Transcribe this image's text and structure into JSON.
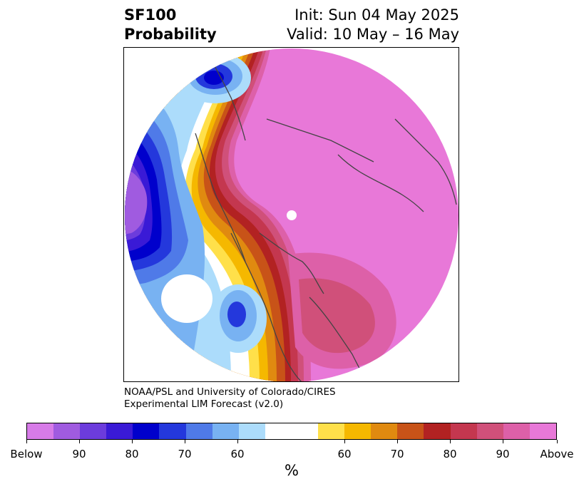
{
  "header": {
    "title_line1": "SF100",
    "title_line2": "Probability",
    "init_text": "Init: Sun 04 May 2025",
    "valid_text": "Valid: 10 May – 16 May"
  },
  "credit": {
    "line1": "NOAA/PSL and University of Colorado/CIRES",
    "line2": "Experimental LIM Forecast (v2.0)"
  },
  "colorbar": {
    "colors": [
      "#d77be8",
      "#a05be0",
      "#6c3cdc",
      "#3a1ad6",
      "#0000cc",
      "#2438dc",
      "#4f7ae8",
      "#78b2f2",
      "#acdcfb",
      "#ffffff",
      "#ffffff",
      "#ffe04a",
      "#f5b800",
      "#e08a10",
      "#c85318",
      "#b22222",
      "#c4374f",
      "#d0507a",
      "#dd60a8",
      "#e878d8"
    ],
    "tick_labels": [
      "Below",
      "90",
      "80",
      "70",
      "60",
      "60",
      "70",
      "80",
      "90",
      "Above"
    ],
    "unit_label": "%"
  },
  "map": {
    "projection": "north-polar-stereographic",
    "colors": {
      "above_high": "#e878d8",
      "above_90": "#dd60a8",
      "above_85": "#d0507a",
      "above_80": "#c4374f",
      "above_75": "#b22222",
      "above_70": "#c85318",
      "above_65": "#e08a10",
      "above_60": "#f5b800",
      "above_55": "#ffe04a",
      "below_55": "#acdcfb",
      "below_60": "#78b2f2",
      "below_65": "#4f7ae8",
      "below_70": "#2438dc",
      "below_75": "#0000cc",
      "below_80": "#3a1ad6",
      "below_85": "#6c3cdc",
      "below_90": "#a05be0",
      "coast": "#444444",
      "pole": "#ffffff"
    }
  }
}
